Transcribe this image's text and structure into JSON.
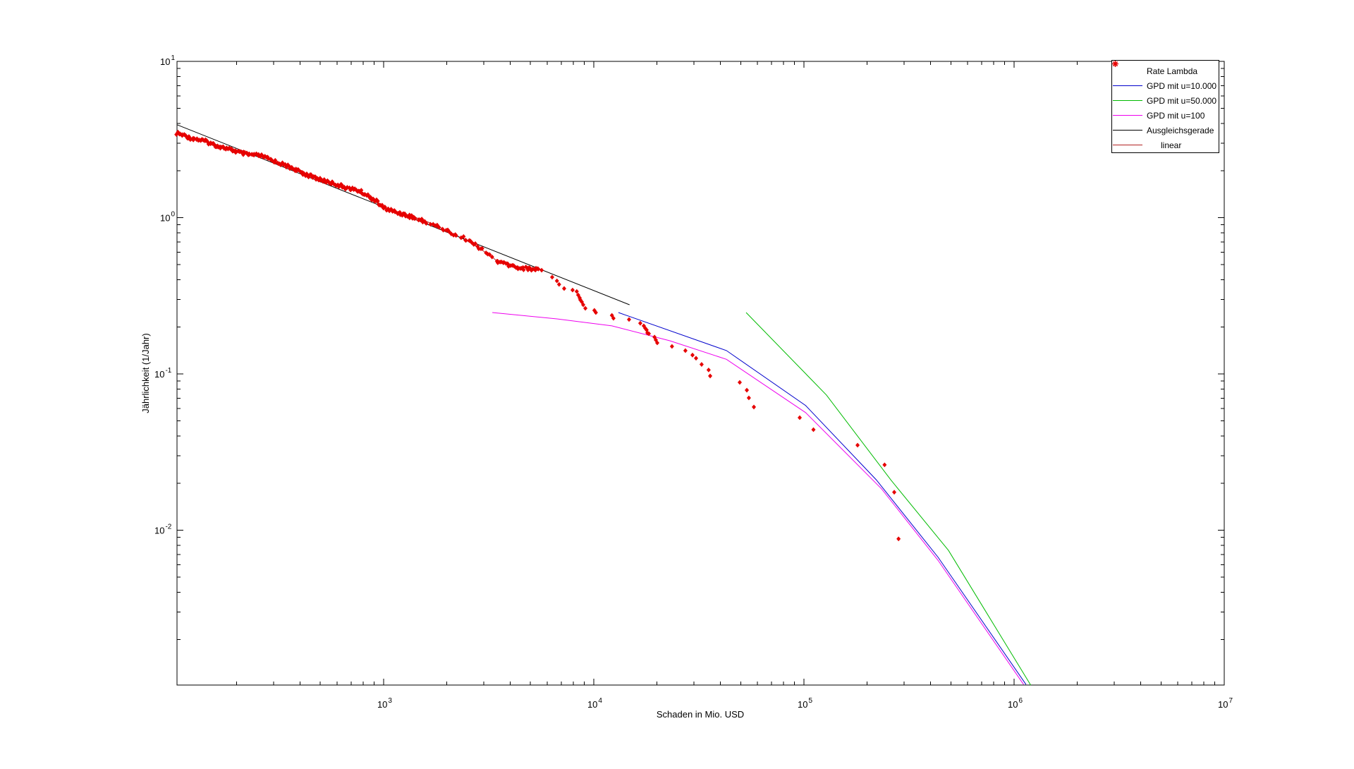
{
  "figure": {
    "background": "#ffffff"
  },
  "chart_data": {
    "type": "line",
    "title": "",
    "xlabel": "Schaden in Mio. USD",
    "ylabel": "Jährlichkeit (1/Jahr)",
    "x_scale": "log",
    "y_scale": "log",
    "xlim_log": [
      2.017,
      7.0
    ],
    "ylim_log": [
      -2.991,
      1.0
    ],
    "x_tick_exponents": [
      3,
      4,
      5,
      6,
      7
    ],
    "y_tick_exponents": [
      1,
      0,
      -1,
      -2
    ],
    "grid": "off",
    "legend": {
      "position": "top-right",
      "entries": [
        {
          "label": "Rate Lambda",
          "color": "#e60000",
          "type": "marker"
        },
        {
          "label": "GPD mit u=10.000",
          "color": "#0000cc",
          "type": "line"
        },
        {
          "label": "GPD mit u=50.000",
          "color": "#00bb00",
          "type": "line"
        },
        {
          "label": "GPD mit u=100",
          "color": "#ee00ee",
          "type": "line"
        },
        {
          "label": "Ausgleichsgerade",
          "color": "#000000",
          "type": "line"
        },
        {
          "label": "linear",
          "color": "#b22222",
          "type": "line",
          "indent": true
        }
      ]
    },
    "series": {
      "rate_lambda_band_anchors_log": [
        [
          2.017,
          0.535
        ],
        [
          2.08,
          0.508
        ],
        [
          2.148,
          0.494
        ],
        [
          2.215,
          0.463
        ],
        [
          2.282,
          0.436
        ],
        [
          2.349,
          0.404
        ],
        [
          2.416,
          0.391
        ],
        [
          2.483,
          0.354
        ],
        [
          2.55,
          0.323
        ],
        [
          2.617,
          0.287
        ],
        [
          2.685,
          0.255
        ],
        [
          2.752,
          0.228
        ],
        [
          2.819,
          0.192
        ],
        [
          2.886,
          0.165
        ],
        [
          2.953,
          0.111
        ],
        [
          2.997,
          0.061
        ],
        [
          3.054,
          0.038
        ],
        [
          3.121,
          0.016
        ],
        [
          3.188,
          -0.016
        ],
        [
          3.255,
          -0.052
        ],
        [
          3.322,
          -0.102
        ],
        [
          3.389,
          -0.142
        ],
        [
          3.456,
          -0.196
        ],
        [
          3.507,
          -0.242
        ],
        [
          3.54,
          -0.278
        ],
        [
          3.591,
          -0.296
        ],
        [
          3.641,
          -0.314
        ],
        [
          3.691,
          -0.323
        ],
        [
          3.742,
          -0.332
        ]
      ],
      "rate_lambda_tail": [
        [
          5310,
          0.475
        ],
        [
          5650,
          0.461
        ],
        [
          6340,
          0.416
        ],
        [
          6680,
          0.394
        ],
        [
          6840,
          0.374
        ],
        [
          7230,
          0.352
        ],
        [
          7930,
          0.344
        ],
        [
          8300,
          0.337
        ],
        [
          8430,
          0.32
        ],
        [
          8570,
          0.307
        ],
        [
          8630,
          0.298
        ],
        [
          8770,
          0.289
        ],
        [
          8910,
          0.277
        ],
        [
          9120,
          0.263
        ],
        [
          10070,
          0.255
        ],
        [
          10230,
          0.247
        ],
        [
          12200,
          0.237
        ],
        [
          12410,
          0.227
        ],
        [
          14720,
          0.223
        ],
        [
          16650,
          0.211
        ],
        [
          17300,
          0.203
        ],
        [
          17580,
          0.196
        ],
        [
          17850,
          0.191
        ],
        [
          17990,
          0.183
        ],
        [
          18280,
          0.181
        ],
        [
          19460,
          0.172
        ],
        [
          19740,
          0.165
        ],
        [
          20050,
          0.158
        ],
        [
          23560,
          0.15
        ],
        [
          27290,
          0.141
        ],
        [
          29500,
          0.132
        ],
        [
          30670,
          0.126
        ],
        [
          32600,
          0.115
        ],
        [
          35200,
          0.106
        ],
        [
          35800,
          0.097
        ],
        [
          49500,
          0.0883
        ],
        [
          53500,
          0.0787
        ],
        [
          54700,
          0.0702
        ],
        [
          57800,
          0.0614
        ],
        [
          95500,
          0.0525
        ],
        [
          111000,
          0.044
        ],
        [
          180000,
          0.035
        ],
        [
          242000,
          0.0262
        ],
        [
          269000,
          0.0175
        ],
        [
          282000,
          0.0088
        ]
      ],
      "gpd_u10000": [
        [
          13100,
          0.247
        ],
        [
          42800,
          0.141
        ],
        [
          102000,
          0.0627
        ],
        [
          221000,
          0.021
        ],
        [
          435000,
          0.0067
        ],
        [
          1140000,
          0.00103
        ]
      ],
      "gpd_u50000": [
        [
          53100,
          0.247
        ],
        [
          128000,
          0.0733
        ],
        [
          259000,
          0.021
        ],
        [
          487000,
          0.00743
        ],
        [
          1200000,
          0.00102
        ]
      ],
      "gpd_u100": [
        [
          3290,
          0.247
        ],
        [
          6680,
          0.225
        ],
        [
          12200,
          0.203
        ],
        [
          23000,
          0.163
        ],
        [
          42800,
          0.124
        ],
        [
          102000,
          0.0565
        ],
        [
          234000,
          0.0184
        ],
        [
          435000,
          0.0064
        ],
        [
          1110000,
          0.00103
        ]
      ],
      "ausgleichsgerade": [
        [
          104,
          3.93
        ],
        [
          14800,
          0.277
        ]
      ]
    }
  }
}
